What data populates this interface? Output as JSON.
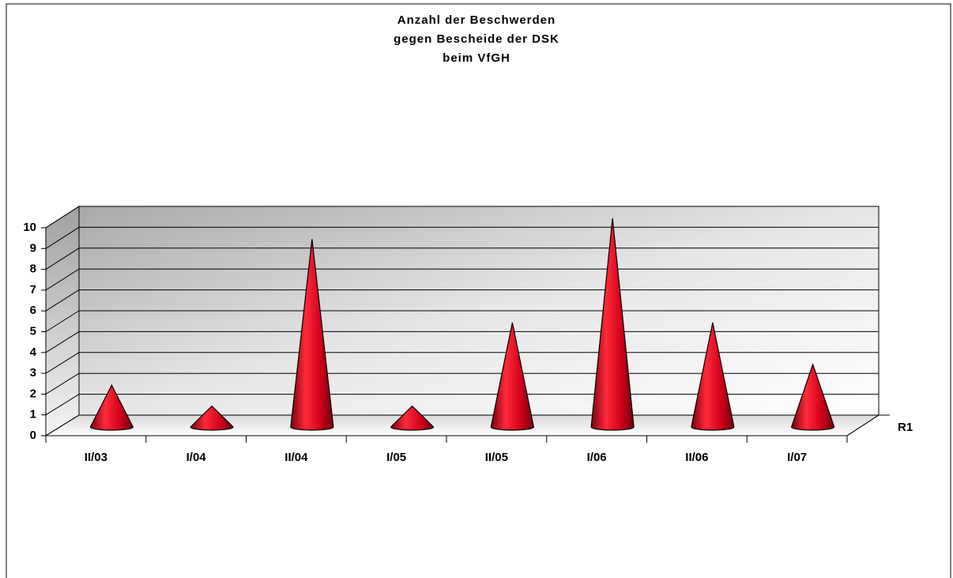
{
  "chart_data": {
    "type": "cone",
    "title": [
      "Anzahl der Beschwerden",
      "gegen Bescheide der DSK",
      "beim VfGH"
    ],
    "categories": [
      "II/03",
      "I/04",
      "II/04",
      "I/05",
      "II/05",
      "I/06",
      "II/06",
      "I/07"
    ],
    "series": [
      {
        "name": "R1",
        "color": "#e0001a",
        "values": [
          2,
          1,
          9,
          1,
          5,
          10,
          5,
          3
        ]
      }
    ],
    "ylim": [
      0,
      10
    ],
    "yticks": [
      0,
      1,
      2,
      3,
      4,
      5,
      6,
      7,
      8,
      9,
      10
    ],
    "grid": true
  }
}
